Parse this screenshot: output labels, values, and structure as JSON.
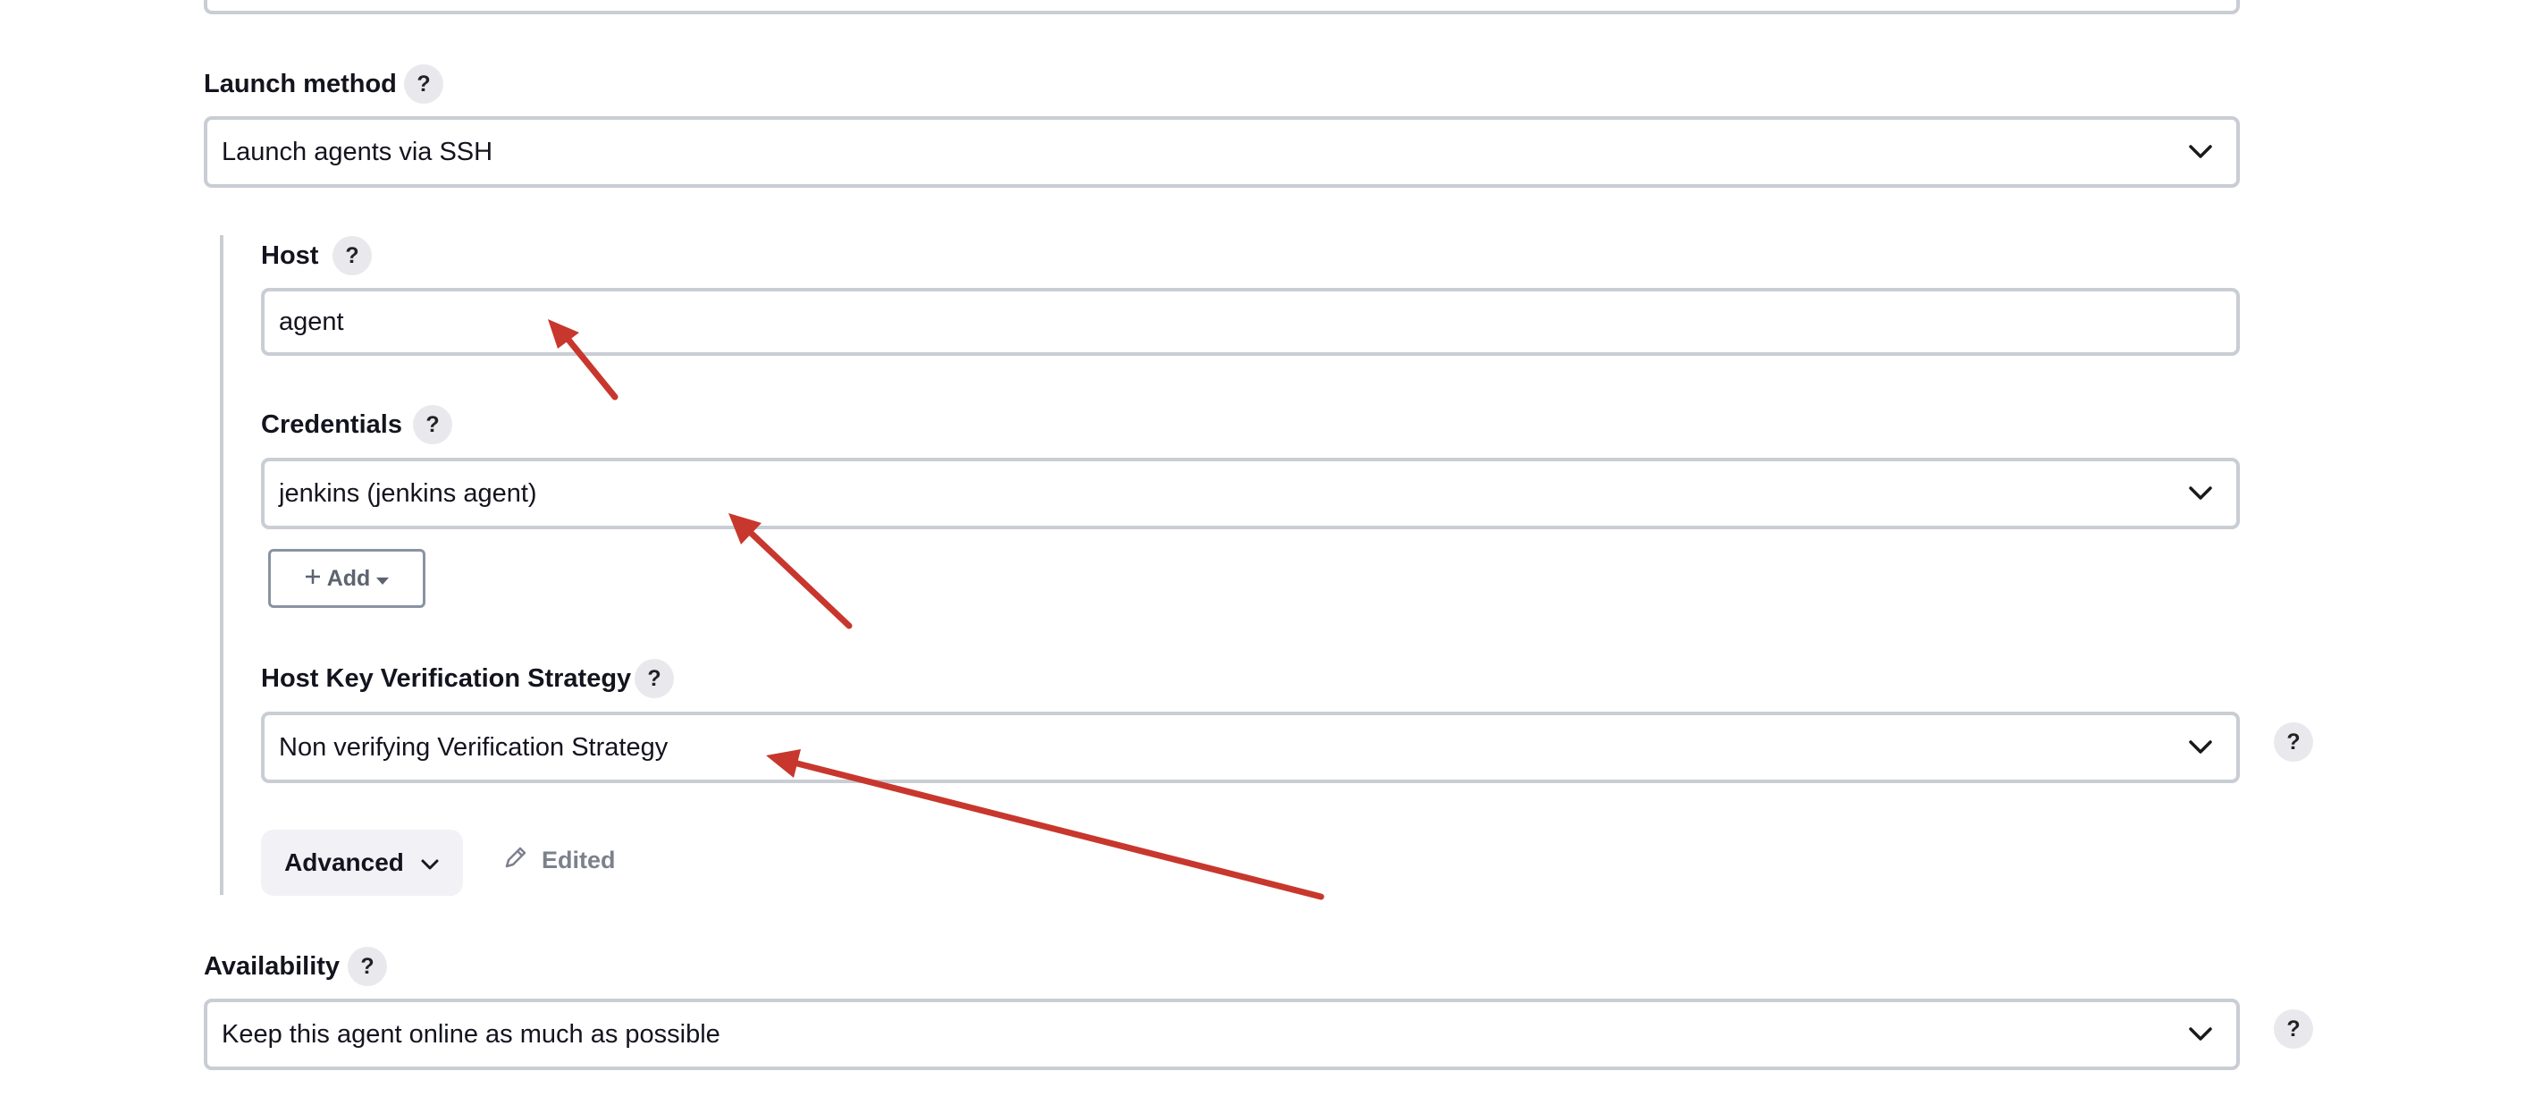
{
  "launch_method": {
    "label": "Launch method",
    "help": "?",
    "value": "Launch agents via SSH"
  },
  "host": {
    "label": "Host",
    "help": "?",
    "value": "agent"
  },
  "credentials": {
    "label": "Credentials",
    "help": "?",
    "value": "jenkins (jenkins agent)",
    "add_button_label": "Add"
  },
  "host_key": {
    "label": "Host Key Verification Strategy",
    "help": "?",
    "value": "Non verifying Verification Strategy",
    "side_help": "?"
  },
  "advanced": {
    "button_label": "Advanced",
    "edited_label": "Edited"
  },
  "availability": {
    "label": "Availability",
    "help": "?",
    "value": "Keep this agent online as much as possible",
    "side_help": "?"
  },
  "annotation_color": "#c8372d",
  "icons": [
    "chevron-down-icon",
    "plus-icon",
    "caret-down-icon",
    "pencil-icon",
    "annotation-arrow"
  ]
}
